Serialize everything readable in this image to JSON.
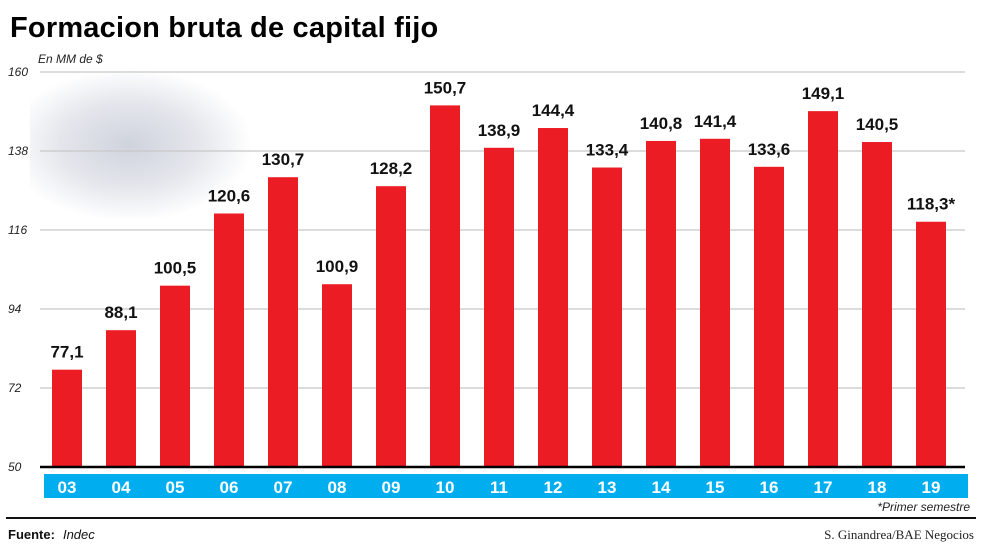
{
  "title": "Formacion bruta de capital fijo",
  "unit": "En MM de $",
  "note": "*Primer semestre",
  "source_label": "Fuente:",
  "source_value": "Indec",
  "credit": "S. Ginandrea/BAE Negocios",
  "chart_data": {
    "type": "bar",
    "title": "Formacion bruta de capital fijo",
    "ylabel": "En MM de $",
    "categories": [
      "03",
      "04",
      "05",
      "06",
      "07",
      "08",
      "09",
      "10",
      "11",
      "12",
      "13",
      "14",
      "15",
      "16",
      "17",
      "18",
      "19"
    ],
    "values": [
      77.1,
      88.1,
      100.5,
      120.6,
      130.7,
      100.9,
      128.2,
      150.7,
      138.9,
      144.4,
      133.4,
      140.8,
      141.4,
      133.6,
      149.1,
      140.5,
      118.3
    ],
    "data_labels": [
      "77,1",
      "88,1",
      "100,5",
      "120,6",
      "130,7",
      "100,9",
      "128,2",
      "150,7",
      "138,9",
      "144,4",
      "133,4",
      "140,8",
      "141,4",
      "133,6",
      "149,1",
      "140,5",
      "118,3*"
    ],
    "ylim": [
      50,
      160
    ],
    "yticks": [
      50,
      72,
      94,
      116,
      138,
      160
    ],
    "grid": true,
    "colors": {
      "bar": "#ec1c24",
      "category_band": "#00aeef",
      "category_text": "#ffffff",
      "grid": "#c8c8c8"
    }
  }
}
